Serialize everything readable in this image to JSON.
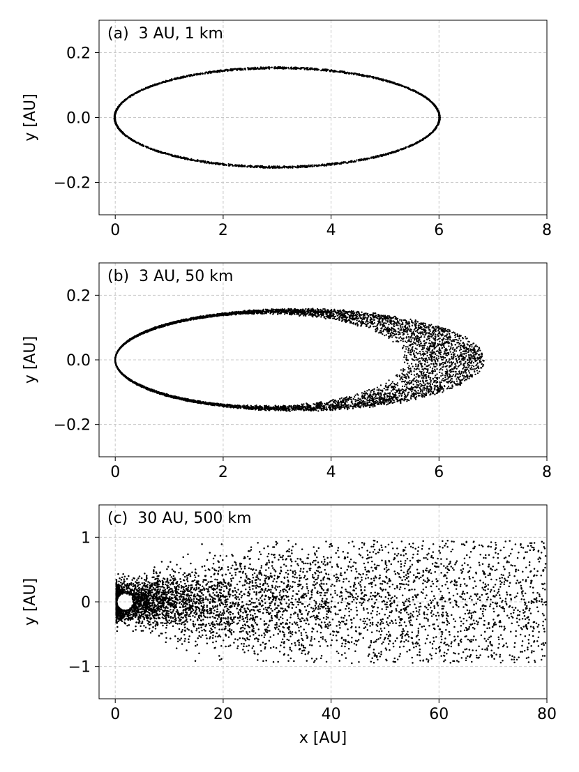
{
  "chart_data": [
    {
      "type": "scatter",
      "panel_label": "(a)  3 AU, 1 km",
      "xlabel": "",
      "ylabel": "y [AU]",
      "xlim": [
        -0.3,
        8
      ],
      "ylim": [
        -0.3,
        0.3
      ],
      "xticks": [
        0,
        2,
        4,
        6,
        8
      ],
      "xtick_labels": [
        "0",
        "2",
        "4",
        "6",
        "8"
      ],
      "yticks": [
        -0.2,
        0.0,
        0.2
      ],
      "ytick_labels": [
        "−0.2",
        "0.0",
        "0.2"
      ],
      "grid": true,
      "series": [
        {
          "color": "#000000",
          "shape": "thin elliptical ring",
          "center_x": 3.0,
          "semi_major_x": [
            3.0,
            3.02
          ],
          "semi_minor_y": [
            0.15,
            0.156
          ],
          "approx_points": 2600
        }
      ]
    },
    {
      "type": "scatter",
      "panel_label": "(b)  3 AU, 50 km",
      "xlabel": "",
      "ylabel": "y [AU]",
      "xlim": [
        -0.3,
        8
      ],
      "ylim": [
        -0.3,
        0.3
      ],
      "xticks": [
        0,
        2,
        4,
        6,
        8
      ],
      "xtick_labels": [
        "0",
        "2",
        "4",
        "6",
        "8"
      ],
      "yticks": [
        -0.2,
        0.0,
        0.2
      ],
      "ytick_labels": [
        "−0.2",
        "0.0",
        "0.2"
      ],
      "grid": true,
      "series": [
        {
          "color": "#000000",
          "shape": "crescent ring, widening toward +x",
          "pericenter_x": 0.0,
          "inner_apocenter_x": 5.35,
          "outer_apocenter_x": 6.85,
          "max_abs_y": 0.16,
          "approx_points": 6500
        }
      ]
    },
    {
      "type": "scatter",
      "panel_label": "(c)  30 AU, 500 km",
      "xlabel": "x [AU]",
      "ylabel": "y [AU]",
      "xlim": [
        -3,
        80
      ],
      "ylim": [
        -1.5,
        1.5
      ],
      "xticks": [
        0,
        20,
        40,
        60,
        80
      ],
      "xtick_labels": [
        "0",
        "20",
        "40",
        "60",
        "80"
      ],
      "yticks": [
        -1,
        0,
        1
      ],
      "ytick_labels": [
        "−1",
        "0",
        "1"
      ],
      "grid": true,
      "series": [
        {
          "color": "#000000",
          "shape": "dense cloud near origin thinning with x, hole near x=2",
          "hole_center": [
            1.8,
            0.0
          ],
          "hole_radius_x": 1.5,
          "hole_radius_y": 0.13,
          "spread_y_at_x0": 0.25,
          "spread_y_at_x40": 0.85,
          "max_abs_y": 0.95,
          "approx_points": 6400
        }
      ]
    }
  ]
}
